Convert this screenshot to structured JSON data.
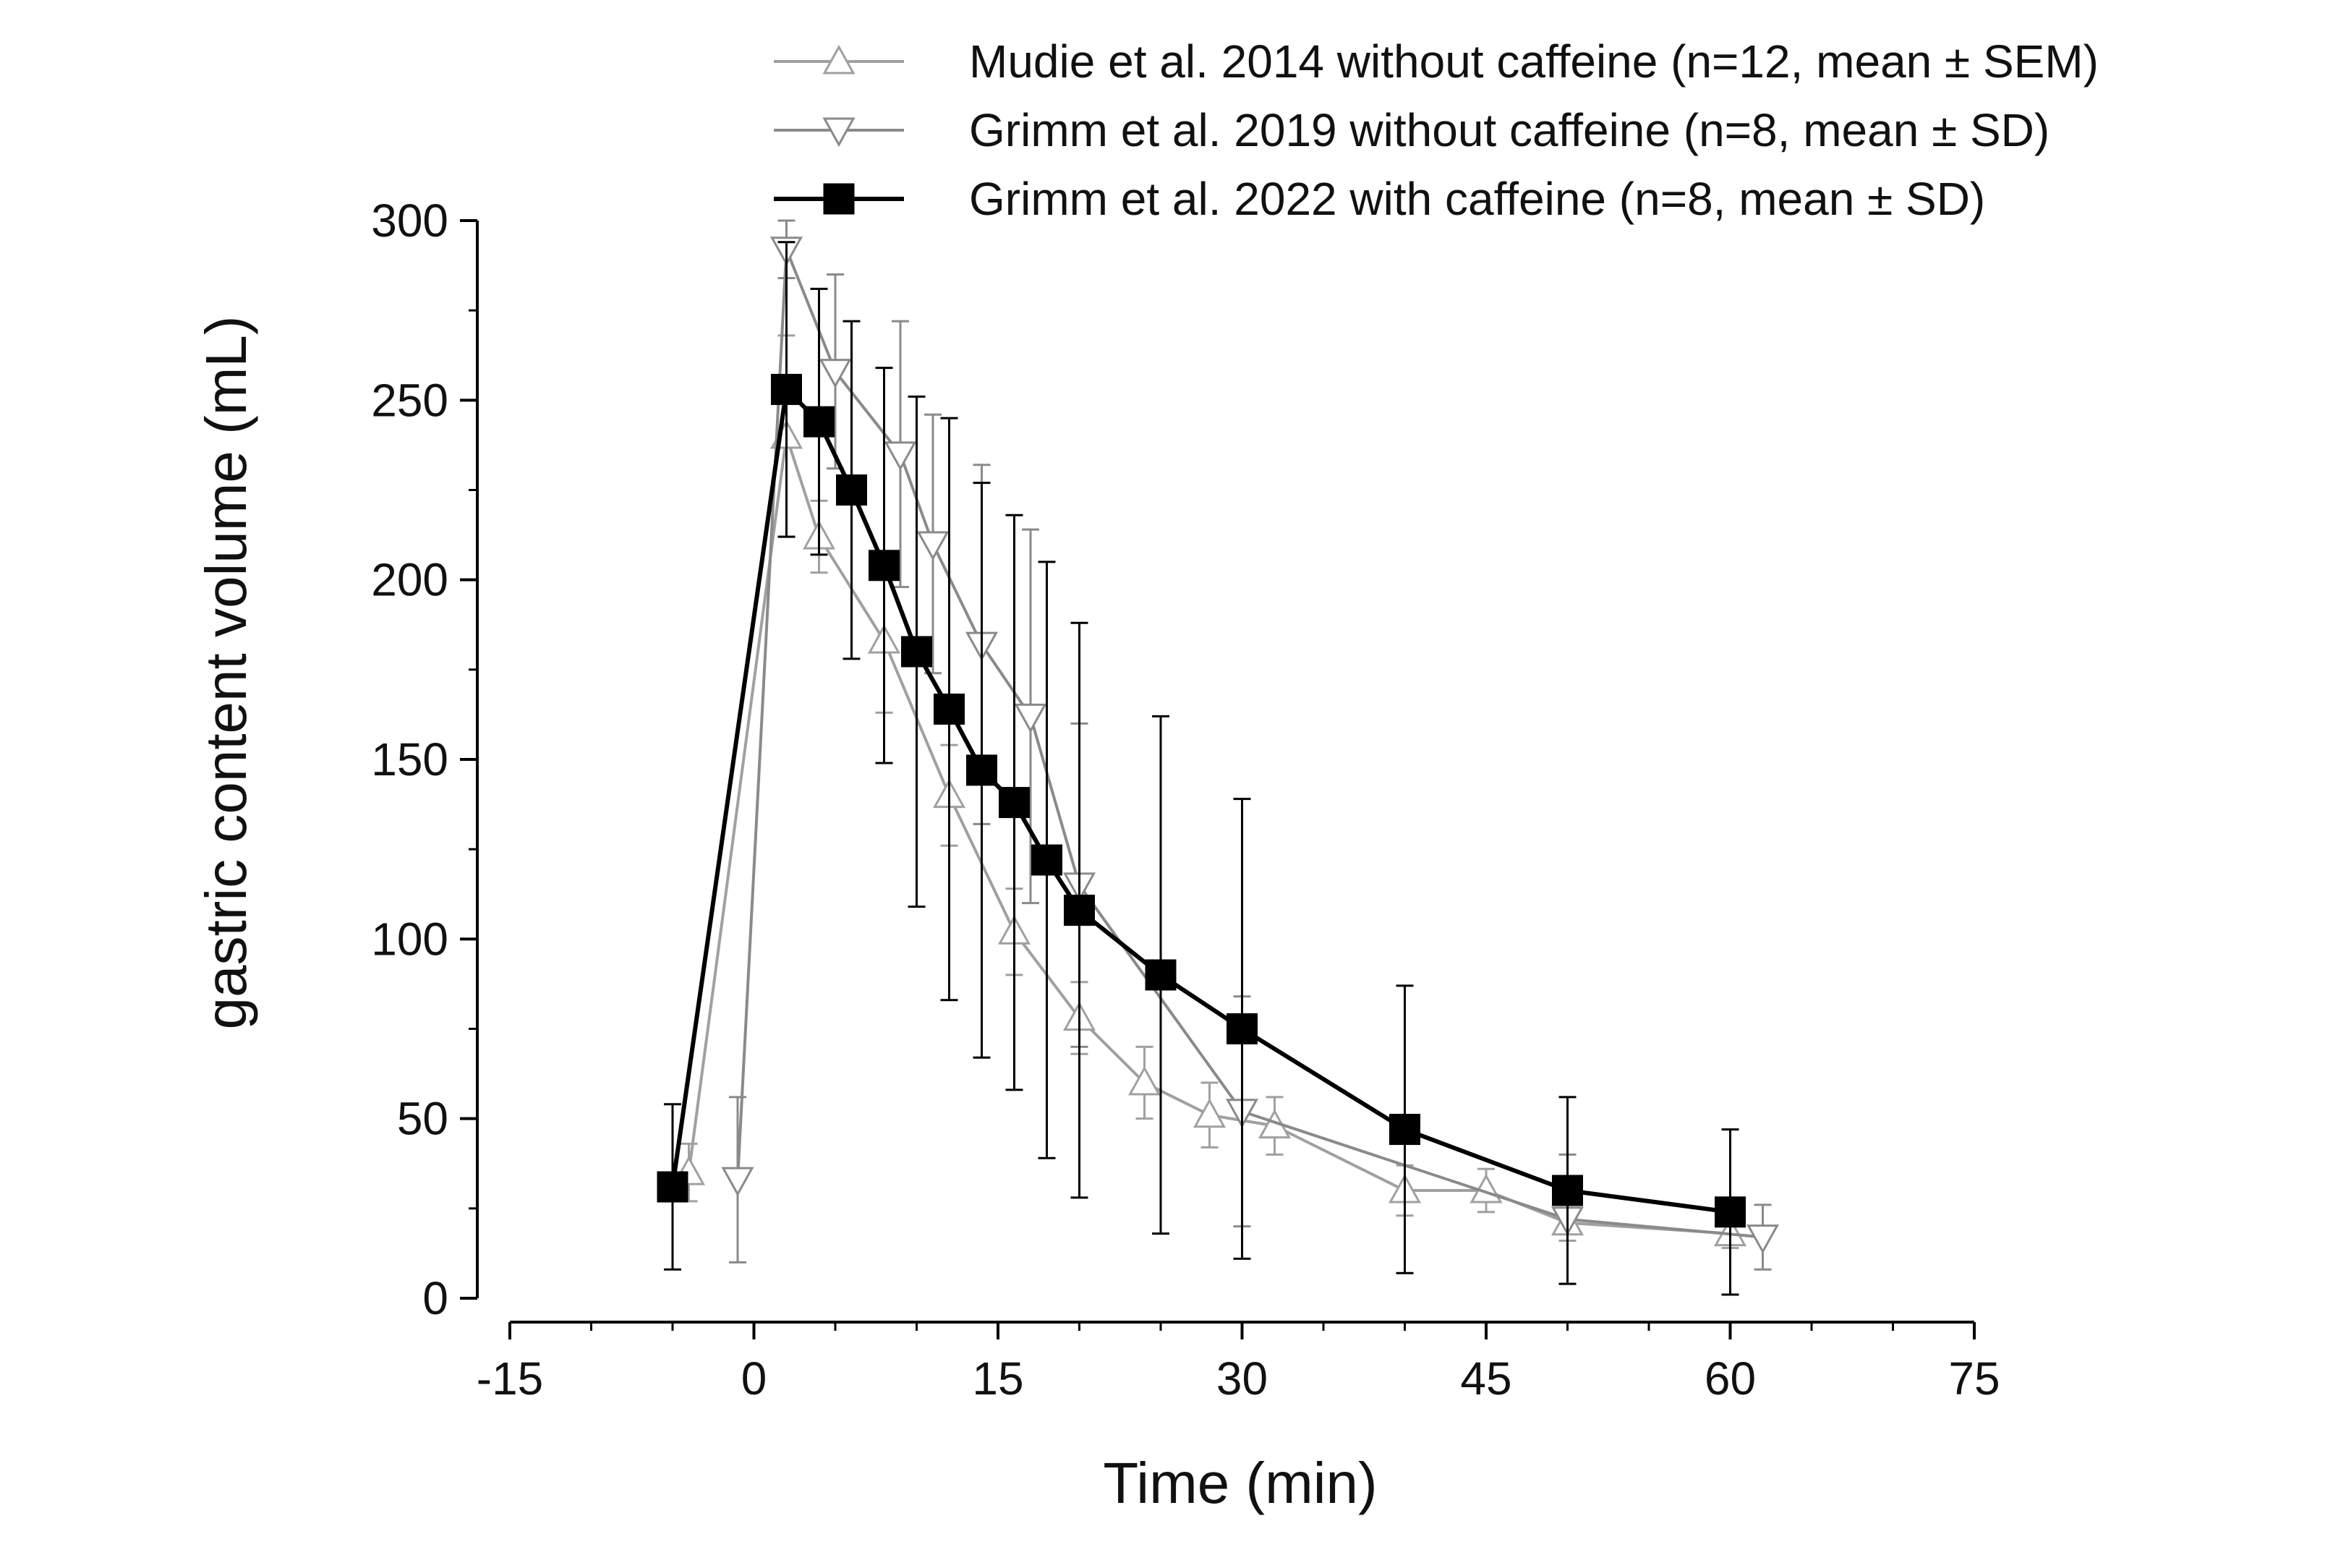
{
  "chart_data": {
    "type": "line",
    "title": "",
    "xlabel": "Time (min)",
    "ylabel": "gastric content volume (mL)",
    "xlim": [
      -15,
      75
    ],
    "ylim": [
      0,
      300
    ],
    "xticks": [
      -15,
      0,
      15,
      30,
      45,
      60,
      75
    ],
    "yticks": [
      0,
      50,
      100,
      150,
      200,
      250,
      300
    ],
    "grid": false,
    "legend_position": "top",
    "series": [
      {
        "name": "Mudie et al. 2014 without caffeine (n=12, mean ± SEM)",
        "marker": "triangle-up",
        "color": "#a0a0a0",
        "x": [
          -4,
          2,
          4,
          8,
          12,
          16,
          20,
          24,
          28,
          32,
          40,
          45,
          50,
          60
        ],
        "y": [
          35,
          240,
          212,
          183,
          140,
          102,
          78,
          60,
          51,
          48,
          30,
          30,
          21,
          18
        ],
        "err": [
          8,
          28,
          10,
          20,
          14,
          12,
          10,
          10,
          9,
          8,
          7,
          6,
          5,
          4
        ]
      },
      {
        "name": "Grimm et al. 2019 without caffeine (n=8, mean ± SD)",
        "marker": "triangle-down",
        "color": "#8a8a8a",
        "x": [
          -1,
          2,
          5,
          9,
          11,
          14,
          17,
          20,
          30,
          50,
          62
        ],
        "y": [
          33,
          292,
          258,
          235,
          210,
          182,
          162,
          115,
          52,
          22,
          17
        ],
        "err": [
          23,
          8,
          27,
          37,
          36,
          50,
          52,
          45,
          32,
          18,
          9
        ]
      },
      {
        "name": "Grimm et al. 2022 with caffeine (n=8, mean ± SD)",
        "marker": "square",
        "color": "#000000",
        "x": [
          -5,
          2,
          4,
          6,
          8,
          10,
          12,
          14,
          16,
          18,
          20,
          25,
          30,
          40,
          50,
          60
        ],
        "y": [
          31,
          253,
          244,
          225,
          204,
          180,
          164,
          147,
          138,
          122,
          108,
          90,
          75,
          47,
          30,
          24
        ],
        "err": [
          23,
          41,
          37,
          47,
          55,
          71,
          81,
          80,
          80,
          83,
          80,
          72,
          64,
          40,
          26,
          23
        ]
      }
    ]
  }
}
